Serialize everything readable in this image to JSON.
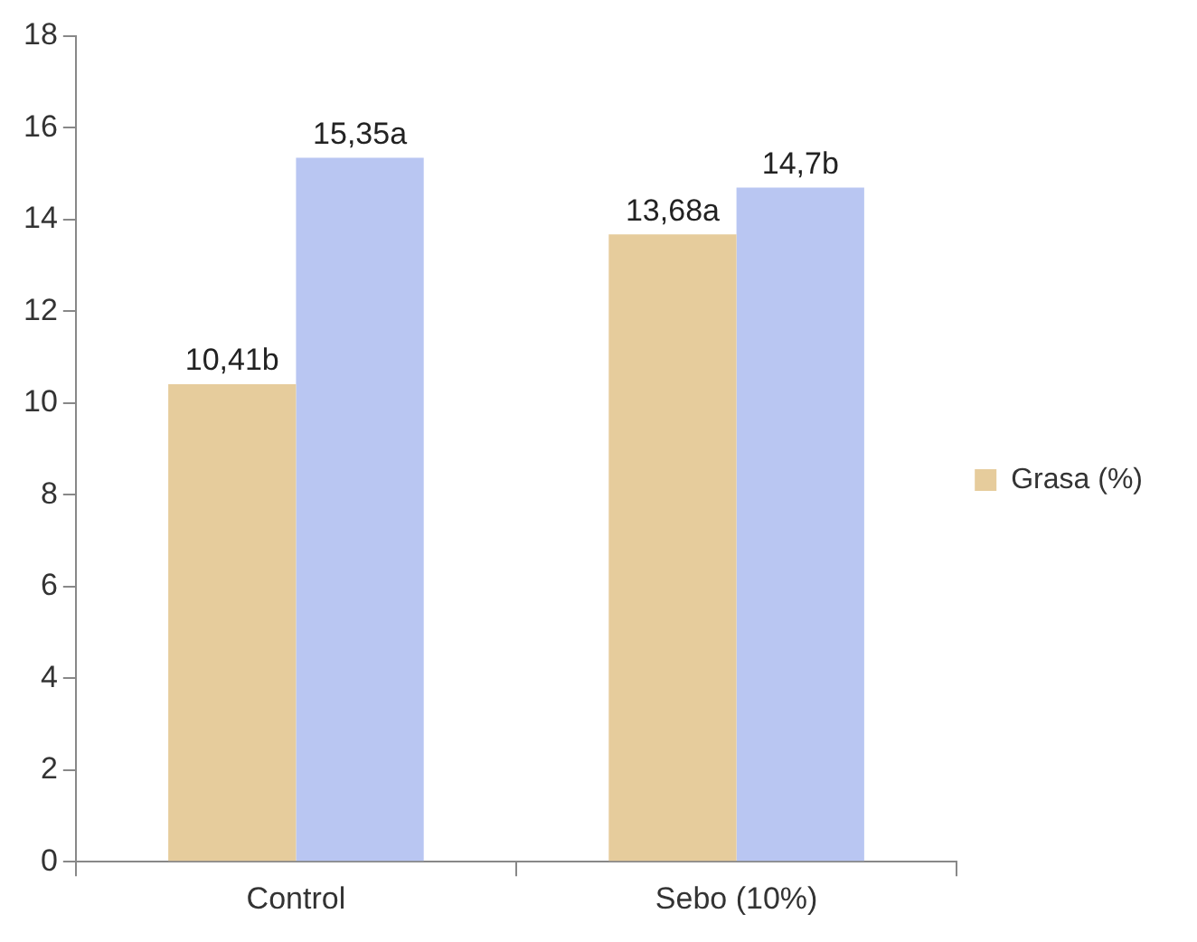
{
  "chart_data": {
    "type": "bar",
    "categories": [
      "Control",
      "Sebo (10%)"
    ],
    "series": [
      {
        "name": "Grasa (%)",
        "color": "#e6cc9c",
        "values": [
          10.41,
          13.68
        ],
        "value_labels": [
          "10,41b",
          "13,68a"
        ]
      },
      {
        "color": "#b9c6f2",
        "values": [
          15.35,
          14.7
        ],
        "value_labels": [
          "15,35a",
          "14,7b"
        ]
      }
    ],
    "ylim": [
      0,
      18
    ],
    "yticks": [
      0,
      2,
      4,
      6,
      8,
      10,
      12,
      14,
      16,
      18
    ],
    "grid": false,
    "legend": "right"
  }
}
